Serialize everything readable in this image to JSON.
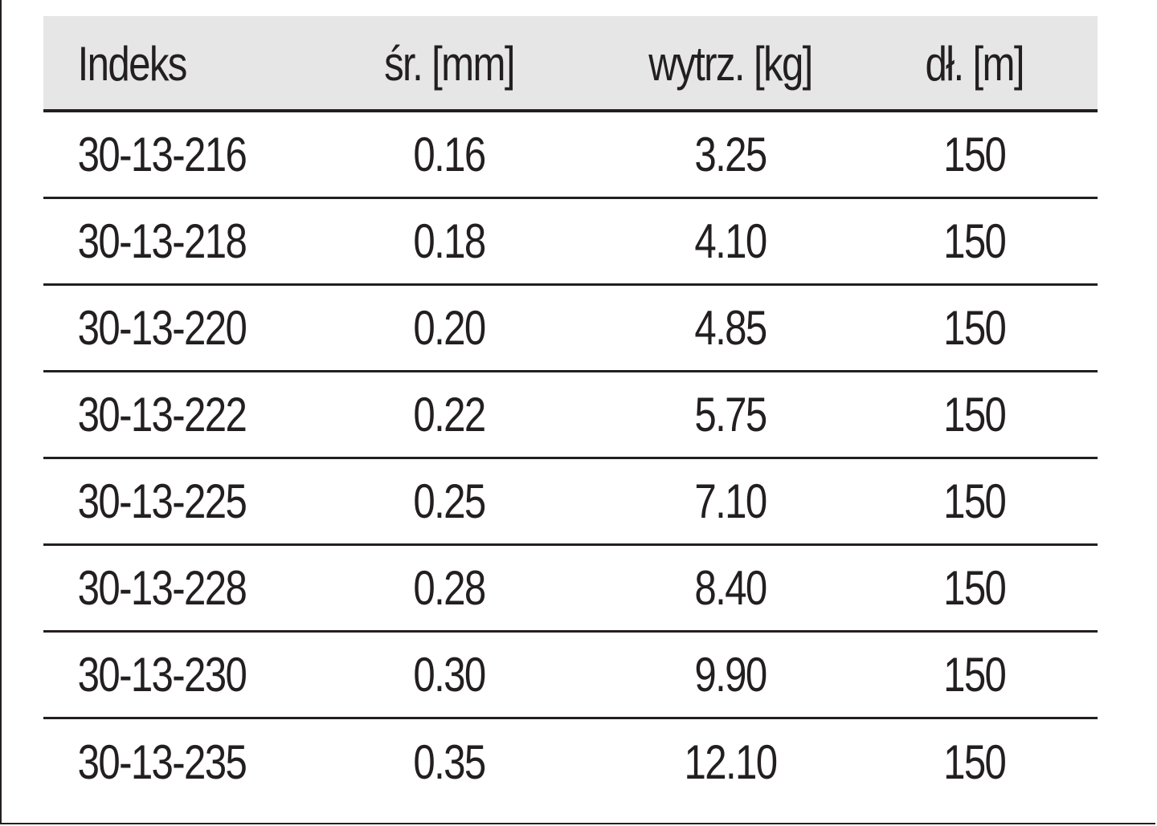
{
  "table": {
    "headers": [
      "Indeks",
      "śr. [mm]",
      "wytrz. [kg]",
      "dł. [m]"
    ],
    "rows": [
      [
        "30-13-216",
        "0.16",
        "3.25",
        "150"
      ],
      [
        "30-13-218",
        "0.18",
        "4.10",
        "150"
      ],
      [
        "30-13-220",
        "0.20",
        "4.85",
        "150"
      ],
      [
        "30-13-222",
        "0.22",
        "5.75",
        "150"
      ],
      [
        "30-13-225",
        "0.25",
        "7.10",
        "150"
      ],
      [
        "30-13-228",
        "0.28",
        "8.40",
        "150"
      ],
      [
        "30-13-230",
        "0.30",
        "9.90",
        "150"
      ],
      [
        "30-13-235",
        "0.35",
        "12.10",
        "150"
      ]
    ]
  },
  "colors": {
    "header_background": "#e6e6e7",
    "text": "#231f20",
    "rule": "#231f20"
  }
}
